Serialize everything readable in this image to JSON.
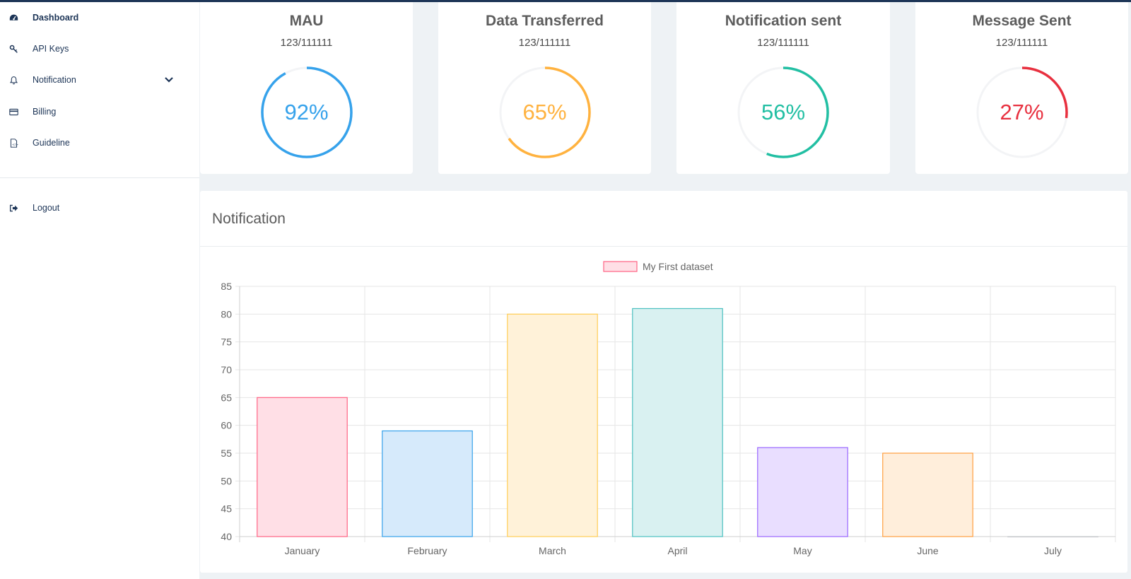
{
  "sidebar": {
    "items": [
      {
        "label": "Dashboard",
        "icon": "dashboard-icon",
        "active": true
      },
      {
        "label": "API Keys",
        "icon": "key-icon"
      },
      {
        "label": "Notification",
        "icon": "bell-icon",
        "has_submenu": true
      },
      {
        "label": "Billing",
        "icon": "credit-card-icon"
      },
      {
        "label": "Guideline",
        "icon": "document-icon"
      }
    ],
    "logout_label": "Logout"
  },
  "cards": [
    {
      "title": "MAU",
      "sub": "123/111111",
      "percent": 92,
      "percent_label": "92%",
      "color": "#36a2eb"
    },
    {
      "title": "Data Transferred",
      "sub": "123/111111",
      "percent": 65,
      "percent_label": "65%",
      "color": "#ffb23f"
    },
    {
      "title": "Notification sent",
      "sub": "123/111111",
      "percent": 56,
      "percent_label": "56%",
      "color": "#22bfa3"
    },
    {
      "title": "Message Sent",
      "sub": "123/111111",
      "percent": 27,
      "percent_label": "27%",
      "color": "#e8303f"
    }
  ],
  "notification_panel": {
    "title": "Notification"
  },
  "chart_data": {
    "type": "bar",
    "categories": [
      "January",
      "February",
      "March",
      "April",
      "May",
      "June",
      "July"
    ],
    "series": [
      {
        "name": "My First dataset",
        "values": [
          65,
          59,
          80,
          81,
          56,
          55,
          40
        ]
      }
    ],
    "bar_fill_colors": [
      "#ffdfe6",
      "#d6eafb",
      "#fff2d9",
      "#d9f1f1",
      "#e9deff",
      "#ffeedb",
      "#ededef"
    ],
    "bar_border_colors": [
      "#ff6384",
      "#36a2eb",
      "#ffcd56",
      "#4bc0c0",
      "#9966ff",
      "#ff9f40",
      "#c9cbcf"
    ],
    "legend_fill": "#ffdfe6",
    "legend_border": "#ff6384",
    "ylim": [
      40,
      85
    ],
    "yticks": [
      40,
      45,
      50,
      55,
      60,
      65,
      70,
      75,
      80,
      85
    ],
    "grid": true,
    "legend_position": "top-center"
  }
}
